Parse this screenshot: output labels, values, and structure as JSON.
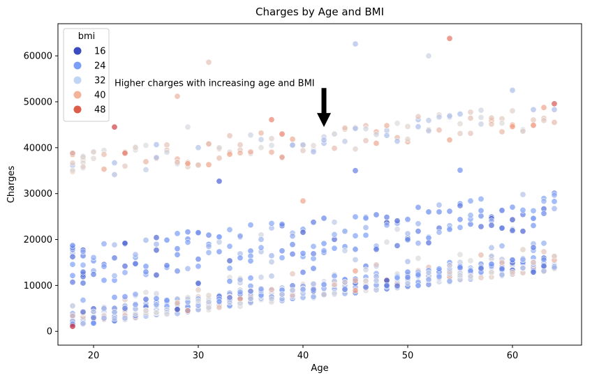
{
  "chart_data": {
    "type": "scatter",
    "title": "Charges by Age and BMI",
    "xlabel": "Age",
    "ylabel": "Charges",
    "xlim": [
      16.6,
      66.6
    ],
    "ylim": [
      -3000,
      67000
    ],
    "xticks": [
      20,
      30,
      40,
      50,
      60
    ],
    "yticks": [
      0,
      10000,
      20000,
      30000,
      40000,
      50000,
      60000
    ],
    "grid": false,
    "colormap": "coolwarm",
    "hue": "bmi",
    "hue_range": [
      16,
      53
    ],
    "legend": {
      "title": "bmi",
      "placement": "top-left",
      "entries": [
        {
          "label": "16",
          "color": "#3b4cc0"
        },
        {
          "label": "24",
          "color": "#7b9ff9"
        },
        {
          "label": "32",
          "color": "#c0d4f5"
        },
        {
          "label": "40",
          "color": "#f2b398"
        },
        {
          "label": "48",
          "color": "#dc5d4a"
        }
      ]
    },
    "annotation": {
      "text": "Higher charges with increasing age and BMI",
      "arrow_from": [
        42,
        53000
      ],
      "arrow_to": [
        42,
        44500
      ]
    },
    "generation": {
      "ages": [
        18,
        64
      ],
      "low_band": {
        "base": 2000,
        "slope": 265,
        "spread": 3300
      },
      "mid_band": {
        "base": 13000,
        "slope": 260,
        "spread": 9000
      },
      "high_band": {
        "base": 35000,
        "slope": 230,
        "spread": 6000
      }
    },
    "outliers": [
      {
        "x": 22,
        "y": 44500,
        "bmi": 49
      },
      {
        "x": 32,
        "y": 32700,
        "bmi": 19
      },
      {
        "x": 31,
        "y": 58600,
        "bmi": 38
      },
      {
        "x": 45,
        "y": 62600,
        "bmi": 30
      },
      {
        "x": 52,
        "y": 60000,
        "bmi": 33
      },
      {
        "x": 54,
        "y": 63800,
        "bmi": 46
      },
      {
        "x": 60,
        "y": 52500,
        "bmi": 30
      },
      {
        "x": 28,
        "y": 51200,
        "bmi": 40
      },
      {
        "x": 29,
        "y": 44500,
        "bmi": 34
      },
      {
        "x": 18,
        "y": 1100,
        "bmi": 51
      },
      {
        "x": 45,
        "y": 35000,
        "bmi": 22
      },
      {
        "x": 55,
        "y": 35100,
        "bmi": 24
      },
      {
        "x": 41,
        "y": 13700,
        "bmi": 23
      },
      {
        "x": 40,
        "y": 28400,
        "bmi": 42
      },
      {
        "x": 37,
        "y": 46100,
        "bmi": 45
      },
      {
        "x": 18,
        "y": 38800,
        "bmi": 41
      }
    ]
  }
}
